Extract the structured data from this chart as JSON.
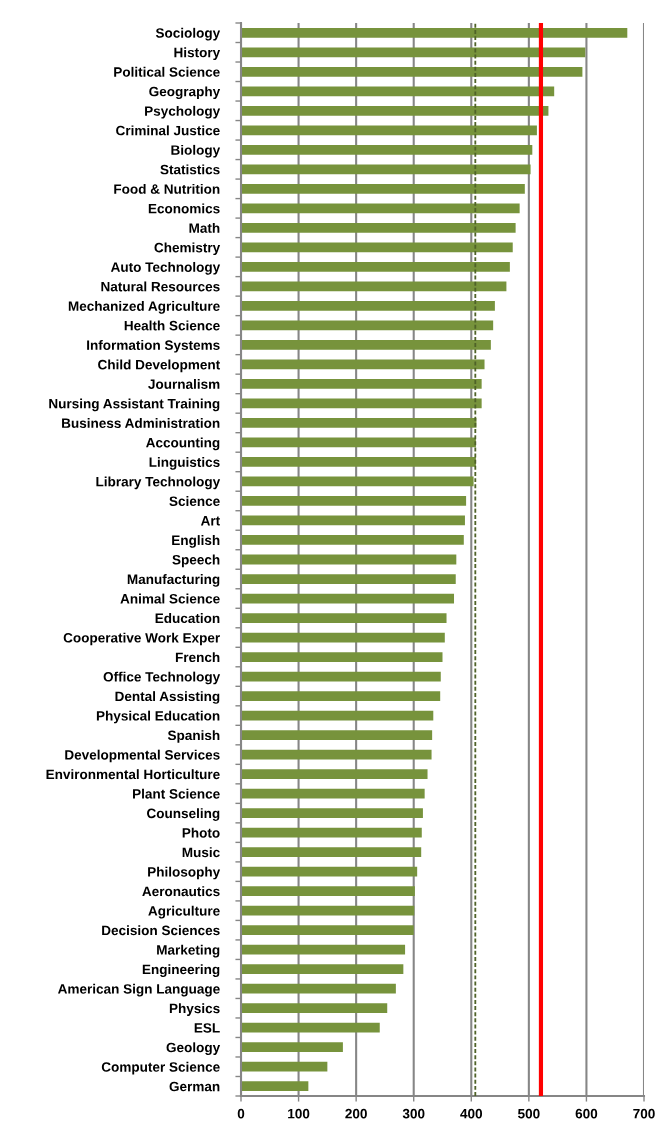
{
  "chart_data": {
    "type": "bar",
    "orientation": "horizontal",
    "categories": [
      "Sociology",
      "History",
      "Political Science",
      "Geography",
      "Psychology",
      "Criminal Justice",
      "Biology",
      "Statistics",
      "Food & Nutrition",
      "Economics",
      "Math",
      "Chemistry",
      "Auto Technology",
      "Natural Resources",
      "Mechanized Agriculture",
      "Health Science",
      "Information Systems",
      "Child Development",
      "Journalism",
      "Nursing Assistant Training",
      "Business Administration",
      "Accounting",
      "Linguistics",
      "Library Technology",
      "Science",
      "Art",
      "English",
      "Speech",
      "Manufacturing",
      "Animal Science",
      "Education",
      "Cooperative Work Exper",
      "French",
      "Office Technology",
      "Dental Assisting",
      "Physical Education",
      "Spanish",
      "Developmental Services",
      "Environmental Horticulture",
      "Plant Science",
      "Counseling",
      "Photo",
      "Music",
      "Philosophy",
      "Aeronautics",
      "Agriculture",
      "Decision Sciences",
      "Marketing",
      "Engineering",
      "American Sign Language",
      "Physics",
      "ESL",
      "Geology",
      "Computer Science",
      "German"
    ],
    "values": [
      671,
      598,
      593,
      544,
      534,
      514,
      506,
      503,
      493,
      484,
      477,
      472,
      467,
      461,
      441,
      438,
      434,
      423,
      418,
      418,
      409,
      408,
      408,
      404,
      391,
      389,
      387,
      374,
      373,
      370,
      357,
      354,
      350,
      347,
      346,
      334,
      332,
      331,
      324,
      319,
      316,
      314,
      313,
      306,
      302,
      301,
      300,
      285,
      282,
      269,
      254,
      241,
      177,
      150,
      117
    ],
    "color": "#77933c",
    "xlim": [
      0,
      700
    ],
    "xticks": [
      0,
      100,
      200,
      300,
      400,
      500,
      600,
      700
    ],
    "grid": "x",
    "ref_lines": [
      {
        "axis": "x",
        "value": 407,
        "color": "#4f6228",
        "line_style": "dashed"
      },
      {
        "axis": "x",
        "value": 521,
        "color": "#ff0000",
        "line_style": "solid"
      }
    ]
  }
}
